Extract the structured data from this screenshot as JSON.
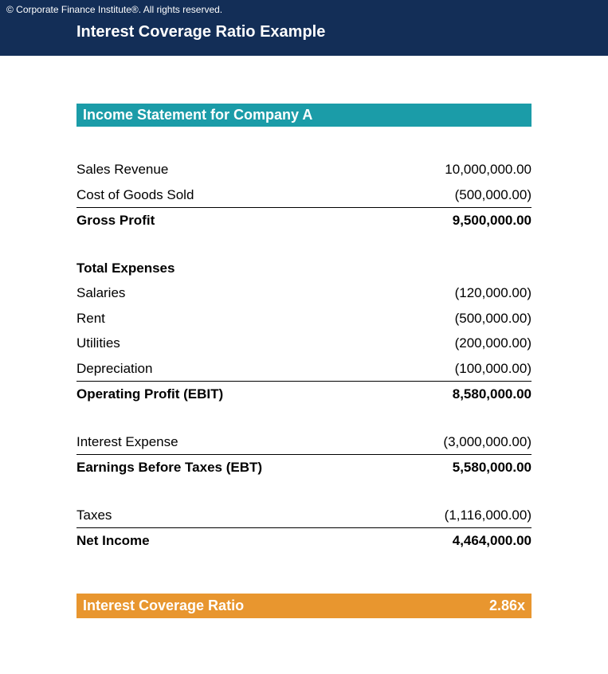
{
  "header": {
    "copyright": "© Corporate Finance Institute®. All rights reserved.",
    "title": "Interest Coverage Ratio Example"
  },
  "colors": {
    "header_bg": "#132e57",
    "teal_bg": "#1b9ca8",
    "orange_bg": "#e8962f",
    "text_white": "#ffffff",
    "text_black": "#000000"
  },
  "statement": {
    "title": "Income Statement for Company A",
    "sales_revenue": {
      "label": "Sales Revenue",
      "value": "10,000,000.00"
    },
    "cogs": {
      "label": "Cost of Goods Sold",
      "value": "(500,000.00)"
    },
    "gross_profit": {
      "label": "Gross Profit",
      "value": "9,500,000.00"
    },
    "total_expenses_header": "Total Expenses",
    "salaries": {
      "label": "Salaries",
      "value": "(120,000.00)"
    },
    "rent": {
      "label": "Rent",
      "value": "(500,000.00)"
    },
    "utilities": {
      "label": "Utilities",
      "value": "(200,000.00)"
    },
    "depreciation": {
      "label": "Depreciation",
      "value": "(100,000.00)"
    },
    "operating_profit": {
      "label": "Operating Profit (EBIT)",
      "value": "8,580,000.00"
    },
    "interest_expense": {
      "label": "Interest Expense",
      "value": "(3,000,000.00)"
    },
    "ebt": {
      "label": "Earnings Before Taxes (EBT)",
      "value": "5,580,000.00"
    },
    "taxes": {
      "label": "Taxes",
      "value": "(1,116,000.00)"
    },
    "net_income": {
      "label": "Net Income",
      "value": "4,464,000.00"
    }
  },
  "ratio": {
    "label": "Interest Coverage Ratio",
    "value": "2.86x"
  }
}
